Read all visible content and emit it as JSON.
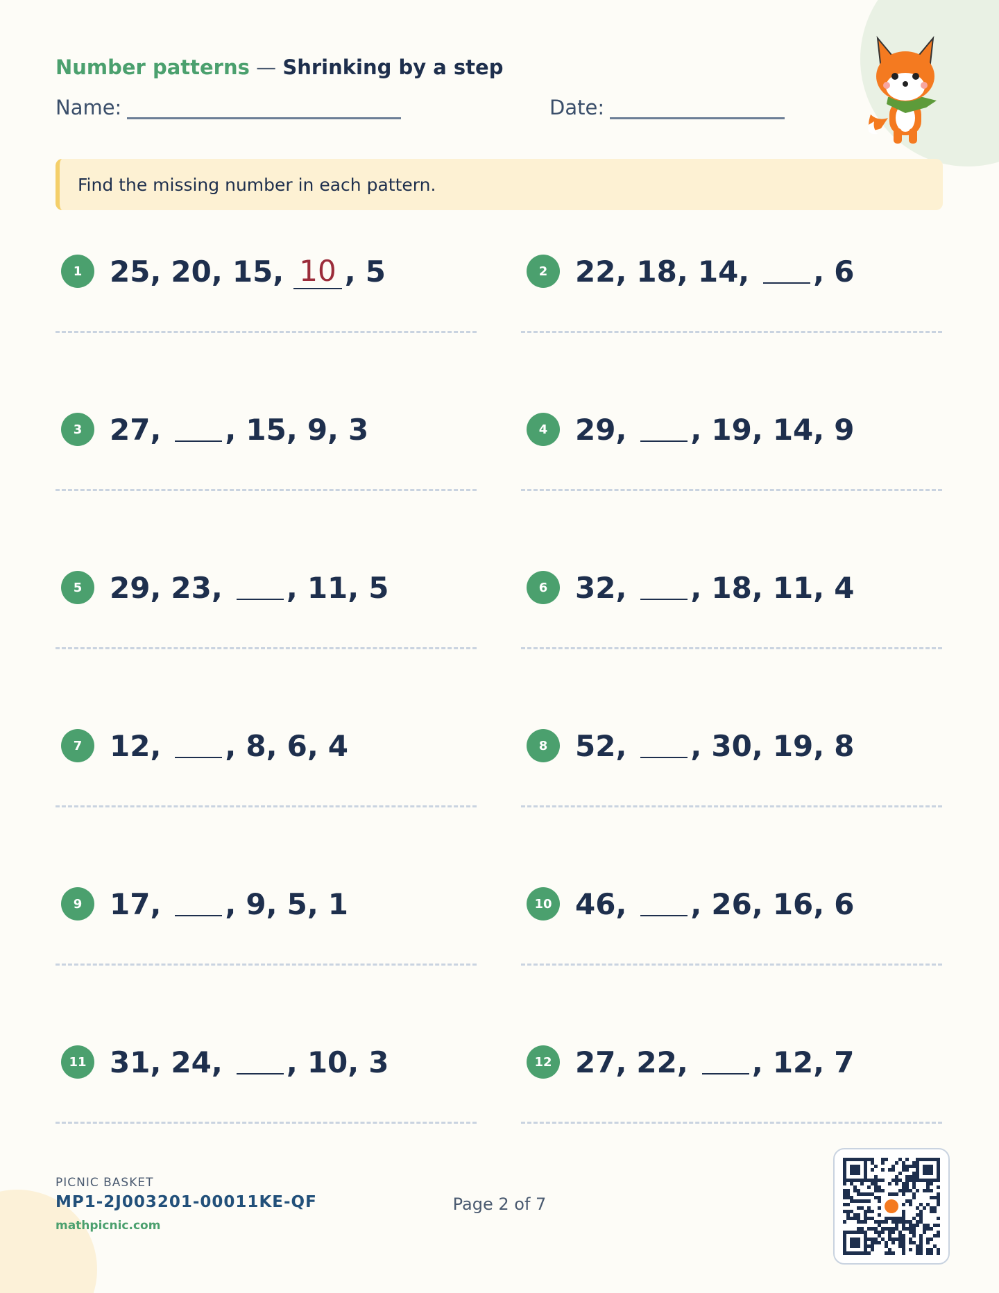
{
  "header": {
    "title": "Number patterns",
    "subtitle": "Shrinking by a step",
    "name_label": "Name:",
    "date_label": "Date:"
  },
  "instruction": "Find the missing number in each pattern.",
  "problems": [
    {
      "label": "1",
      "terms": [
        25,
        20,
        15,
        null,
        5
      ],
      "answer": 10
    },
    {
      "label": "2",
      "terms": [
        22,
        18,
        14,
        null,
        6
      ]
    },
    {
      "label": "3",
      "terms": [
        27,
        null,
        15,
        9,
        3
      ]
    },
    {
      "label": "4",
      "terms": [
        29,
        null,
        19,
        14,
        9
      ]
    },
    {
      "label": "5",
      "terms": [
        29,
        23,
        null,
        11,
        5
      ]
    },
    {
      "label": "6",
      "terms": [
        32,
        null,
        18,
        11,
        4
      ]
    },
    {
      "label": "7",
      "terms": [
        12,
        null,
        8,
        6,
        4
      ]
    },
    {
      "label": "8",
      "terms": [
        52,
        null,
        30,
        19,
        8
      ]
    },
    {
      "label": "9",
      "terms": [
        17,
        null,
        9,
        5,
        1
      ]
    },
    {
      "label": "10",
      "terms": [
        46,
        null,
        26,
        16,
        6
      ]
    },
    {
      "label": "11",
      "terms": [
        31,
        24,
        null,
        10,
        3
      ]
    },
    {
      "label": "12",
      "terms": [
        27,
        22,
        null,
        12,
        7
      ]
    }
  ],
  "footer": {
    "brand": "PICNIC BASKET",
    "code": "MP1-2J003201-00011KE-QF",
    "site": "mathpicnic.com",
    "page": "Page 2 of 7"
  }
}
